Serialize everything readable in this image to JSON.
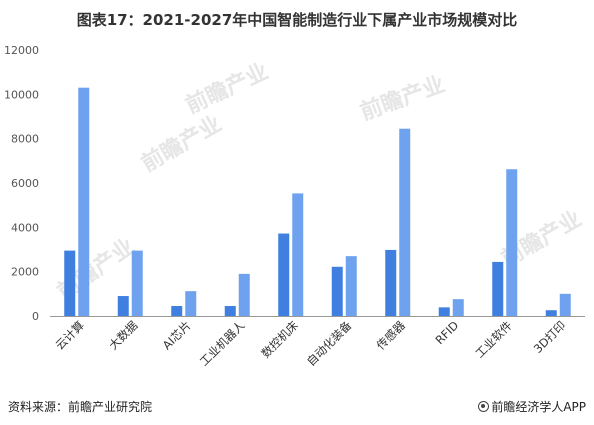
{
  "title": "图表17：2021-2027年中国智能制造行业下属产业市场规模对比",
  "source": "资料来源：前瞻产业研究院",
  "brand": "前瞻经济学人APP",
  "watermark": "前瞻产业",
  "colors": {
    "series_2021": "#3f7fe0",
    "series_2027": "#6ea2ee",
    "axis": "#999999"
  },
  "chart_data": {
    "type": "bar",
    "title": "图表17：2021-2027年中国智能制造行业下属产业市场规模对比",
    "xlabel": "",
    "ylabel": "",
    "ylim": [
      0,
      12000
    ],
    "yticks": [
      0,
      2000,
      4000,
      6000,
      8000,
      10000,
      12000
    ],
    "grid": false,
    "legend": "none",
    "categories": [
      "云计算",
      "大数据",
      "AI芯片",
      "工业机器人",
      "数控机床",
      "自动化装备",
      "传感器",
      "RFID",
      "工业软件",
      "3D打印"
    ],
    "series": [
      {
        "values": [
          2950,
          900,
          450,
          450,
          3720,
          2220,
          2980,
          390,
          2440,
          260
        ]
      },
      {
        "values": [
          10300,
          2950,
          1120,
          1900,
          5530,
          2700,
          8450,
          760,
          6620,
          1000
        ]
      }
    ]
  }
}
